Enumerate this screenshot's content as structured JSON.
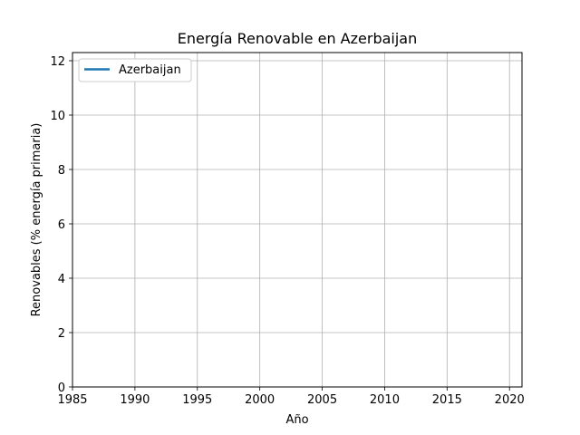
{
  "chart_data": {
    "type": "line",
    "title": "Energía Renovable en Azerbaijan",
    "xlabel": "Año",
    "ylabel": "Renovables (% energía primaria)",
    "xlim": [
      1985,
      2021
    ],
    "ylim": [
      0,
      12.3
    ],
    "xticks": [
      1985,
      1990,
      1995,
      2000,
      2005,
      2010,
      2015,
      2020
    ],
    "yticks": [
      0,
      2,
      4,
      6,
      8,
      10,
      12
    ],
    "grid": true,
    "legend_position": "upper-left",
    "series": [
      {
        "name": "Azerbaijan",
        "color": "#1f77b4",
        "x": [
          1985,
          1990,
          1995,
          2000,
          2005,
          2010,
          2015,
          2020
        ],
        "values": [
          null,
          null,
          null,
          null,
          null,
          null,
          null,
          null
        ]
      }
    ]
  }
}
